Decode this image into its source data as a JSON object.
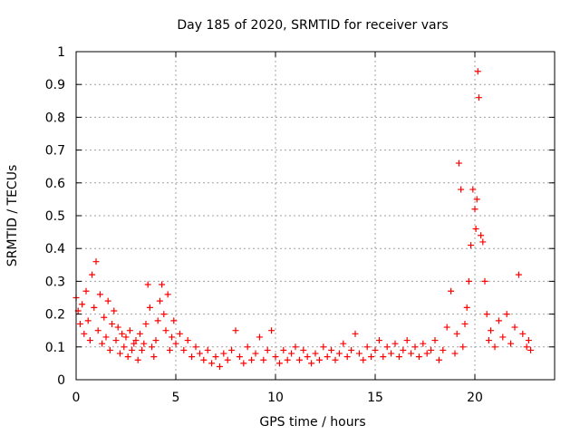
{
  "chart_data": {
    "type": "scatter",
    "title": "Day 185 of 2020, SRMTID for receiver vars",
    "xlabel": "GPS time / hours",
    "ylabel": "SRMTID / TECUs",
    "xlim": [
      0,
      24
    ],
    "ylim": [
      0,
      1
    ],
    "x_ticks": [
      "0",
      "5",
      "10",
      "15",
      "20"
    ],
    "y_ticks": [
      "0",
      "0.1",
      "0.2",
      "0.3",
      "0.4",
      "0.5",
      "0.6",
      "0.7",
      "0.8",
      "0.9",
      "1"
    ],
    "grid": true,
    "marker": "+",
    "color": "#ff0000",
    "series": [
      {
        "name": "SRMTID",
        "points": [
          [
            0.0,
            0.25
          ],
          [
            0.1,
            0.21
          ],
          [
            0.2,
            0.17
          ],
          [
            0.3,
            0.23
          ],
          [
            0.4,
            0.14
          ],
          [
            0.5,
            0.27
          ],
          [
            0.6,
            0.18
          ],
          [
            0.7,
            0.12
          ],
          [
            0.8,
            0.32
          ],
          [
            0.9,
            0.22
          ],
          [
            1.0,
            0.36
          ],
          [
            1.1,
            0.15
          ],
          [
            1.2,
            0.26
          ],
          [
            1.3,
            0.11
          ],
          [
            1.4,
            0.19
          ],
          [
            1.5,
            0.13
          ],
          [
            1.6,
            0.24
          ],
          [
            1.7,
            0.09
          ],
          [
            1.8,
            0.17
          ],
          [
            1.9,
            0.21
          ],
          [
            2.0,
            0.12
          ],
          [
            2.1,
            0.16
          ],
          [
            2.2,
            0.08
          ],
          [
            2.3,
            0.14
          ],
          [
            2.4,
            0.1
          ],
          [
            2.5,
            0.13
          ],
          [
            2.6,
            0.07
          ],
          [
            2.7,
            0.15
          ],
          [
            2.8,
            0.09
          ],
          [
            2.9,
            0.11
          ],
          [
            3.0,
            0.12
          ],
          [
            3.1,
            0.06
          ],
          [
            3.2,
            0.14
          ],
          [
            3.3,
            0.09
          ],
          [
            3.4,
            0.11
          ],
          [
            3.5,
            0.17
          ],
          [
            3.6,
            0.29
          ],
          [
            3.7,
            0.22
          ],
          [
            3.8,
            0.1
          ],
          [
            3.9,
            0.07
          ],
          [
            4.0,
            0.12
          ],
          [
            4.1,
            0.18
          ],
          [
            4.2,
            0.24
          ],
          [
            4.3,
            0.29
          ],
          [
            4.4,
            0.2
          ],
          [
            4.5,
            0.15
          ],
          [
            4.6,
            0.26
          ],
          [
            4.7,
            0.09
          ],
          [
            4.8,
            0.13
          ],
          [
            4.9,
            0.18
          ],
          [
            5.0,
            0.11
          ],
          [
            5.2,
            0.14
          ],
          [
            5.4,
            0.09
          ],
          [
            5.6,
            0.12
          ],
          [
            5.8,
            0.07
          ],
          [
            6.0,
            0.1
          ],
          [
            6.2,
            0.08
          ],
          [
            6.4,
            0.06
          ],
          [
            6.6,
            0.09
          ],
          [
            6.8,
            0.05
          ],
          [
            7.0,
            0.07
          ],
          [
            7.2,
            0.04
          ],
          [
            7.4,
            0.08
          ],
          [
            7.6,
            0.06
          ],
          [
            7.8,
            0.09
          ],
          [
            8.0,
            0.15
          ],
          [
            8.2,
            0.07
          ],
          [
            8.4,
            0.05
          ],
          [
            8.6,
            0.1
          ],
          [
            8.8,
            0.06
          ],
          [
            9.0,
            0.08
          ],
          [
            9.2,
            0.13
          ],
          [
            9.4,
            0.06
          ],
          [
            9.6,
            0.09
          ],
          [
            9.8,
            0.15
          ],
          [
            10.0,
            0.07
          ],
          [
            10.2,
            0.05
          ],
          [
            10.4,
            0.09
          ],
          [
            10.6,
            0.06
          ],
          [
            10.8,
            0.08
          ],
          [
            11.0,
            0.1
          ],
          [
            11.2,
            0.06
          ],
          [
            11.4,
            0.09
          ],
          [
            11.6,
            0.07
          ],
          [
            11.8,
            0.05
          ],
          [
            12.0,
            0.08
          ],
          [
            12.2,
            0.06
          ],
          [
            12.4,
            0.1
          ],
          [
            12.6,
            0.07
          ],
          [
            12.8,
            0.09
          ],
          [
            13.0,
            0.06
          ],
          [
            13.2,
            0.08
          ],
          [
            13.4,
            0.11
          ],
          [
            13.6,
            0.07
          ],
          [
            13.8,
            0.09
          ],
          [
            14.0,
            0.14
          ],
          [
            14.2,
            0.08
          ],
          [
            14.4,
            0.06
          ],
          [
            14.6,
            0.1
          ],
          [
            14.8,
            0.07
          ],
          [
            15.0,
            0.09
          ],
          [
            15.2,
            0.12
          ],
          [
            15.4,
            0.07
          ],
          [
            15.6,
            0.1
          ],
          [
            15.8,
            0.08
          ],
          [
            16.0,
            0.11
          ],
          [
            16.2,
            0.07
          ],
          [
            16.4,
            0.09
          ],
          [
            16.6,
            0.12
          ],
          [
            16.8,
            0.08
          ],
          [
            17.0,
            0.1
          ],
          [
            17.2,
            0.07
          ],
          [
            17.4,
            0.11
          ],
          [
            17.6,
            0.08
          ],
          [
            17.8,
            0.09
          ],
          [
            18.0,
            0.12
          ],
          [
            18.2,
            0.06
          ],
          [
            18.4,
            0.09
          ],
          [
            18.6,
            0.16
          ],
          [
            18.8,
            0.27
          ],
          [
            19.0,
            0.08
          ],
          [
            19.1,
            0.14
          ],
          [
            19.2,
            0.66
          ],
          [
            19.3,
            0.58
          ],
          [
            19.4,
            0.1
          ],
          [
            19.5,
            0.17
          ],
          [
            19.6,
            0.22
          ],
          [
            19.7,
            0.3
          ],
          [
            19.8,
            0.41
          ],
          [
            19.9,
            0.58
          ],
          [
            20.0,
            0.52
          ],
          [
            20.05,
            0.46
          ],
          [
            20.1,
            0.55
          ],
          [
            20.15,
            0.94
          ],
          [
            20.2,
            0.86
          ],
          [
            20.3,
            0.44
          ],
          [
            20.4,
            0.42
          ],
          [
            20.5,
            0.3
          ],
          [
            20.6,
            0.2
          ],
          [
            20.7,
            0.12
          ],
          [
            20.8,
            0.15
          ],
          [
            21.0,
            0.1
          ],
          [
            21.2,
            0.18
          ],
          [
            21.4,
            0.13
          ],
          [
            21.6,
            0.2
          ],
          [
            21.8,
            0.11
          ],
          [
            22.0,
            0.16
          ],
          [
            22.2,
            0.32
          ],
          [
            22.4,
            0.14
          ],
          [
            22.6,
            0.1
          ],
          [
            22.7,
            0.12
          ],
          [
            22.8,
            0.09
          ]
        ]
      }
    ]
  }
}
